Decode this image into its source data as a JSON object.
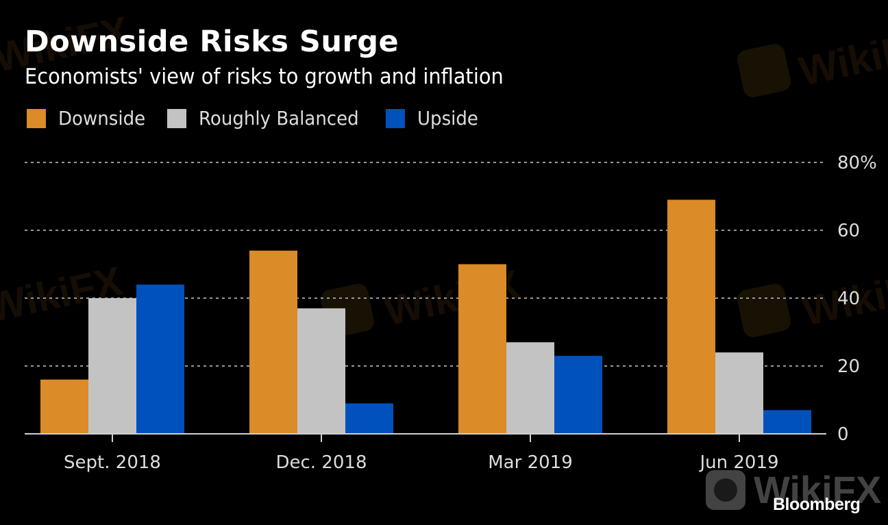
{
  "header": {
    "title": "Downside Risks Surge",
    "subtitle": "Economists' view of risks to growth and inflation"
  },
  "legend": [
    {
      "label": "Downside",
      "color": "#DB8B27"
    },
    {
      "label": "Roughly Balanced",
      "color": "#C3C3C3"
    },
    {
      "label": "Upside",
      "color": "#0051BB"
    }
  ],
  "source": "Bloomberg",
  "watermark": "WikiFX",
  "chart_data": {
    "type": "bar",
    "title": "Downside Risks Surge",
    "subtitle": "Economists' view of risks to growth and inflation",
    "xlabel": "",
    "ylabel": "",
    "categories": [
      "Sept. 2018",
      "Dec. 2018",
      "Mar 2019",
      "Jun 2019"
    ],
    "series": [
      {
        "name": "Downside",
        "color": "#DB8B27",
        "values": [
          16,
          54,
          50,
          69
        ]
      },
      {
        "name": "Roughly Balanced",
        "color": "#C3C3C3",
        "values": [
          40,
          37,
          27,
          24
        ]
      },
      {
        "name": "Upside",
        "color": "#0051BB",
        "values": [
          44,
          9,
          23,
          7
        ]
      }
    ],
    "ylim": [
      0,
      80
    ],
    "yticks": [
      0,
      20,
      40,
      60,
      80
    ],
    "ytick_labels": [
      "0",
      "20",
      "40",
      "60",
      "80%"
    ],
    "y_axis_side": "right",
    "grid": true,
    "grid_style": "dotted",
    "legend_position": "top-left"
  }
}
